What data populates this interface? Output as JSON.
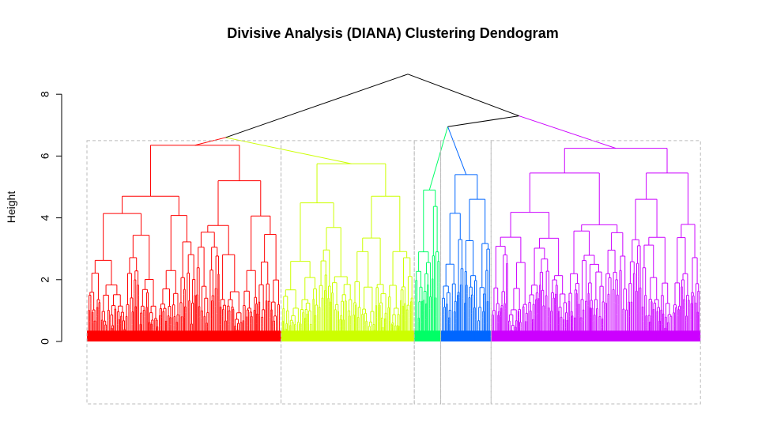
{
  "chart_data": {
    "type": "dendrogram",
    "title": "Divisive Analysis (DIANA) Clustering Dendogram",
    "ylabel": "Height",
    "xlabel": "",
    "ylim": [
      0,
      8
    ],
    "yticks": [
      0,
      2,
      4,
      6,
      8
    ],
    "root_height": 8.65,
    "cut_height": 6.5,
    "clusters": [
      {
        "color": "#ff0000",
        "merge_height": 6.6,
        "share": 0.316,
        "subtree_heights": [
          6.35,
          5.3,
          4.7,
          4.5,
          4.5,
          4.2,
          3.9,
          3.7,
          3.4,
          2.9,
          2.8,
          2.7,
          2.6,
          2.5,
          2.3,
          2.0,
          1.8
        ]
      },
      {
        "color": "#ccff00",
        "merge_height": 6.6,
        "share": 0.217,
        "subtree_heights": [
          5.75,
          5.1,
          4.7,
          4.2,
          3.7,
          3.4,
          3.1,
          2.7,
          2.5,
          2.2,
          1.9,
          1.6,
          1.3
        ]
      },
      {
        "color": "#00ff66",
        "merge_height": 6.95,
        "share": 0.043,
        "subtree_heights": [
          4.9,
          4.4,
          2.9,
          2.6,
          2.3,
          1.9,
          1.5
        ]
      },
      {
        "color": "#0066ff",
        "merge_height": 6.95,
        "share": 0.082,
        "subtree_heights": [
          5.4,
          5.2,
          4.6,
          3.8,
          3.5,
          3.1,
          2.7,
          2.3,
          1.9,
          1.5
        ]
      },
      {
        "color": "#cc00ff",
        "merge_height": 7.3,
        "share": 0.341,
        "subtree_heights": [
          6.25,
          5.45,
          5.2,
          4.6,
          4.2,
          3.95,
          3.55,
          3.5,
          3.3,
          3.1,
          2.9,
          2.6,
          2.3,
          2.0,
          1.7
        ]
      }
    ],
    "upper_merges": [
      {
        "height": 8.65,
        "color": "#000000"
      },
      {
        "height": 7.3,
        "color": "#000000"
      },
      {
        "height": 6.95,
        "color": "#000000"
      },
      {
        "height": 6.6,
        "color": "#000000"
      }
    ],
    "cluster_boxes": {
      "style": "dashed",
      "color": "#bbbbbb",
      "top_height": 6.5
    },
    "grid": false,
    "legend": "none"
  }
}
